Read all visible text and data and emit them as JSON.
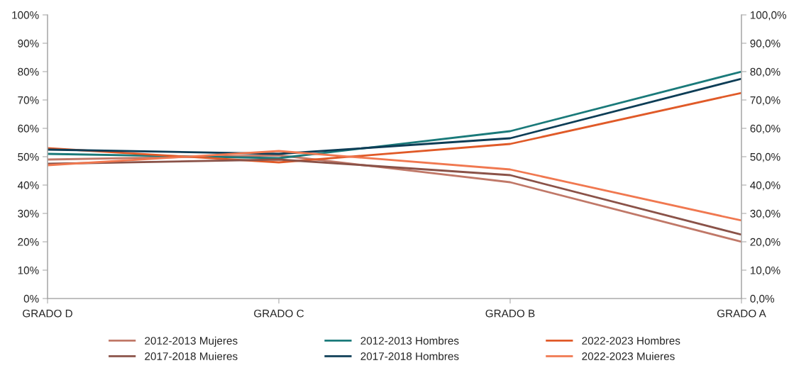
{
  "chart_data": {
    "type": "line",
    "categories": [
      "GRADO D",
      "GRADO C",
      "GRADO B",
      "GRADO A"
    ],
    "series": [
      {
        "name": "2012-2013 Mujeres",
        "color": "#c07868",
        "values": [
          49,
          50.5,
          41,
          20
        ]
      },
      {
        "name": "2012-2013 Hombres",
        "color": "#1a7a7a",
        "values": [
          51,
          49.5,
          59,
          80
        ]
      },
      {
        "name": "2022-2023 Hombres",
        "color": "#e05a28",
        "values": [
          53,
          48,
          54.5,
          72.5
        ]
      },
      {
        "name": "2017-2018 Muieres",
        "color": "#8a5248",
        "values": [
          47.5,
          49,
          43.5,
          22.5
        ]
      },
      {
        "name": "2017-2018 Hombres",
        "color": "#0d3d56",
        "values": [
          52.5,
          51,
          56.5,
          77.5
        ]
      },
      {
        "name": "2022-2023 Muieres",
        "color": "#f07850",
        "values": [
          47,
          52,
          45.5,
          27.5
        ]
      }
    ],
    "ylim": [
      0,
      100
    ],
    "yticks": [
      {
        "value": 0,
        "label": "0%"
      },
      {
        "value": 10,
        "label": "10%"
      },
      {
        "value": 20,
        "label": "20%"
      },
      {
        "value": 30,
        "label": "30%"
      },
      {
        "value": 40,
        "label": "40%"
      },
      {
        "value": 50,
        "label": "50%"
      },
      {
        "value": 60,
        "label": "60%"
      },
      {
        "value": 70,
        "label": "70%"
      },
      {
        "value": 80,
        "label": "80%"
      },
      {
        "value": 90,
        "label": "90%"
      },
      {
        "value": 100,
        "label": "100%"
      }
    ],
    "y2lim": [
      0,
      100
    ],
    "y2ticks": [
      {
        "value": 0,
        "label": "0,0%"
      },
      {
        "value": 10,
        "label": "10,0%"
      },
      {
        "value": 20,
        "label": "20,0%"
      },
      {
        "value": 30,
        "label": "30,0%"
      },
      {
        "value": 40,
        "label": "40,0%"
      },
      {
        "value": 50,
        "label": "50,0%"
      },
      {
        "value": 60,
        "label": "60,0%"
      },
      {
        "value": 70,
        "label": "70,0%"
      },
      {
        "value": 80,
        "label": "80,0%"
      },
      {
        "value": 90,
        "label": "90,0%"
      },
      {
        "value": 100,
        "label": "100,0%"
      }
    ],
    "grid": false,
    "legend": "bottom",
    "marker": "none",
    "line_style": "solid"
  }
}
